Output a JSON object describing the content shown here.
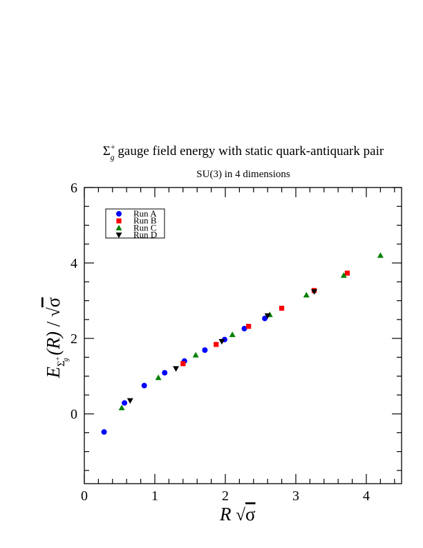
{
  "chart_data": {
    "type": "scatter",
    "title_sym": "Σ",
    "title_sub": "g",
    "title_sup": "+",
    "title_text": " gauge field energy with static quark-antiquark pair",
    "subtitle": "SU(3) in 4 dimensions",
    "xlabel": {
      "var": "R",
      "sqrt": "√",
      "sigma": "σ"
    },
    "ylabel": {
      "E": "E",
      "sub_sym": "Σ",
      "sub_sup": "+",
      "sub_sub": "g",
      "arg": "(R)",
      "slash": " / ",
      "sqrt": "√",
      "sigma": "σ"
    },
    "xlim": [
      0,
      4.5
    ],
    "ylim": [
      -1.85,
      6
    ],
    "x_ticks": [
      0,
      1,
      2,
      3,
      4
    ],
    "y_ticks": [
      0,
      2,
      4,
      6
    ],
    "x_tick_labels": [
      "0",
      "1",
      "2",
      "3",
      "4"
    ],
    "y_tick_labels": [
      "0",
      "2",
      "4",
      "6"
    ],
    "legend_position": "top-left",
    "series": [
      {
        "name": "Run A",
        "marker": "circle",
        "color": "#0000ff",
        "points": [
          [
            0.28,
            -0.48
          ],
          [
            0.57,
            0.29
          ],
          [
            0.85,
            0.75
          ],
          [
            1.14,
            1.09
          ],
          [
            1.42,
            1.4
          ],
          [
            1.71,
            1.69
          ],
          [
            1.99,
            1.97
          ],
          [
            2.27,
            2.26
          ],
          [
            2.56,
            2.53
          ]
        ]
      },
      {
        "name": "Run B",
        "marker": "square",
        "color": "#ff0000",
        "points": [
          [
            1.4,
            1.33
          ],
          [
            1.87,
            1.84
          ],
          [
            2.33,
            2.32
          ],
          [
            2.8,
            2.8
          ],
          [
            3.26,
            3.27
          ],
          [
            3.73,
            3.73
          ]
        ]
      },
      {
        "name": "Run C",
        "marker": "triangle-up",
        "color": "#008000",
        "points": [
          [
            0.53,
            0.16
          ],
          [
            1.05,
            0.96
          ],
          [
            1.58,
            1.56
          ],
          [
            2.1,
            2.1
          ],
          [
            2.63,
            2.63
          ],
          [
            3.15,
            3.15
          ],
          [
            3.68,
            3.67
          ],
          [
            4.2,
            4.2
          ]
        ]
      },
      {
        "name": "Run D",
        "marker": "triangle-down",
        "color": "#000000",
        "points": [
          [
            0.65,
            0.35
          ],
          [
            1.3,
            1.2
          ],
          [
            1.95,
            1.92
          ],
          [
            2.6,
            2.6
          ],
          [
            3.26,
            3.24
          ]
        ]
      }
    ]
  }
}
